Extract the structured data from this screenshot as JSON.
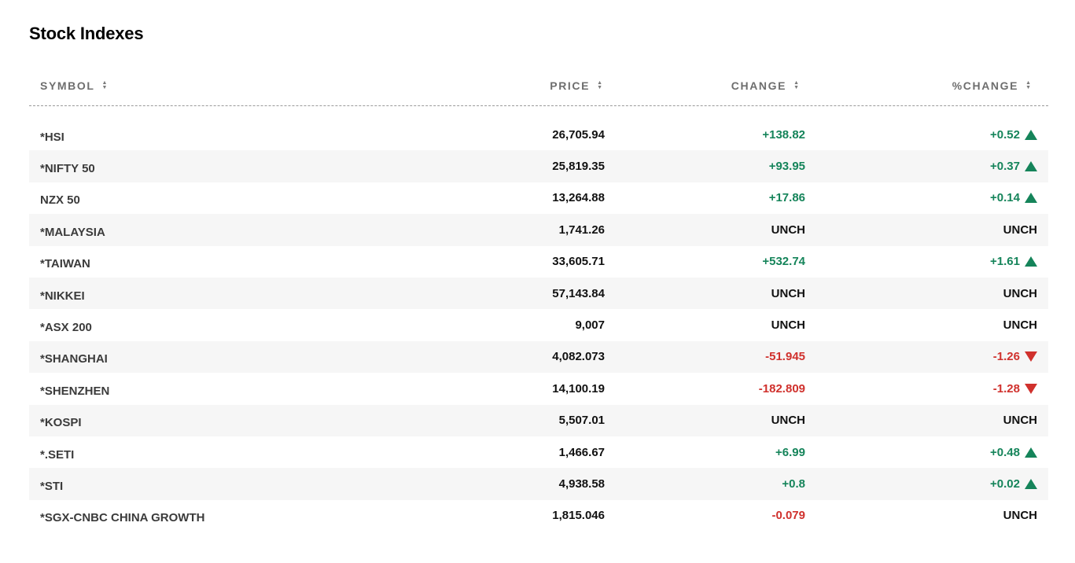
{
  "page_title": "Stock Indexes",
  "headers": {
    "symbol": "SYMBOL",
    "price": "PRICE",
    "change": "CHANGE",
    "pct_change": "%CHANGE"
  },
  "colors": {
    "up": "#15845a",
    "down": "#d0312d",
    "row_shade": "#f6f6f6"
  },
  "rows": [
    {
      "symbol": "*HSI",
      "price": "26,705.94",
      "change": "+138.82",
      "pct_change": "+0.52",
      "direction": "up"
    },
    {
      "symbol": "*NIFTY 50",
      "price": "25,819.35",
      "change": "+93.95",
      "pct_change": "+0.37",
      "direction": "up"
    },
    {
      "symbol": "NZX 50",
      "price": "13,264.88",
      "change": "+17.86",
      "pct_change": "+0.14",
      "direction": "up"
    },
    {
      "symbol": "*MALAYSIA",
      "price": "1,741.26",
      "change": "UNCH",
      "pct_change": "UNCH",
      "direction": "flat"
    },
    {
      "symbol": "*TAIWAN",
      "price": "33,605.71",
      "change": "+532.74",
      "pct_change": "+1.61",
      "direction": "up"
    },
    {
      "symbol": "*NIKKEI",
      "price": "57,143.84",
      "change": "UNCH",
      "pct_change": "UNCH",
      "direction": "flat"
    },
    {
      "symbol": "*ASX 200",
      "price": "9,007",
      "change": "UNCH",
      "pct_change": "UNCH",
      "direction": "flat"
    },
    {
      "symbol": "*SHANGHAI",
      "price": "4,082.073",
      "change": "-51.945",
      "pct_change": "-1.26",
      "direction": "down"
    },
    {
      "symbol": "*SHENZHEN",
      "price": "14,100.19",
      "change": "-182.809",
      "pct_change": "-1.28",
      "direction": "down"
    },
    {
      "symbol": "*KOSPI",
      "price": "5,507.01",
      "change": "UNCH",
      "pct_change": "UNCH",
      "direction": "flat"
    },
    {
      "symbol": "*.SETI",
      "price": "1,466.67",
      "change": "+6.99",
      "pct_change": "+0.48",
      "direction": "up"
    },
    {
      "symbol": "*STI",
      "price": "4,938.58",
      "change": "+0.8",
      "pct_change": "+0.02",
      "direction": "up"
    },
    {
      "symbol": "*SGX-CNBC CHINA GROWTH",
      "price": "1,815.046",
      "change": "-0.079",
      "pct_change": "UNCH",
      "direction": "mixed-down"
    }
  ]
}
